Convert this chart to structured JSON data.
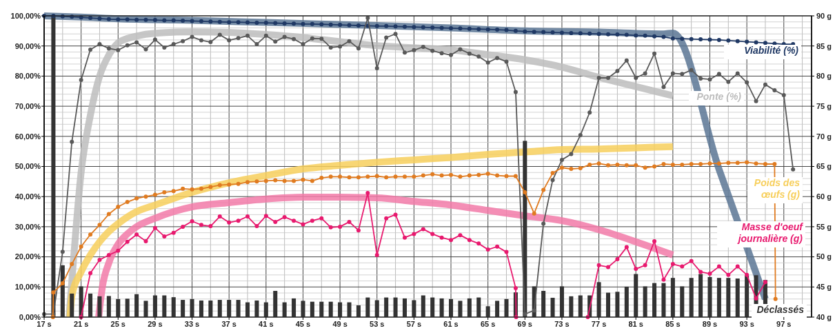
{
  "chart_data": {
    "type": "line",
    "xlim": [
      17,
      100
    ],
    "xticks": [
      {
        "value": 17,
        "label": "17 s"
      },
      {
        "value": 21,
        "label": "21 s"
      },
      {
        "value": 25,
        "label": "25 s"
      },
      {
        "value": 29,
        "label": "29 s"
      },
      {
        "value": 33,
        "label": "33 s"
      },
      {
        "value": 37,
        "label": "37 s"
      },
      {
        "value": 41,
        "label": "41 s"
      },
      {
        "value": 45,
        "label": "45 s"
      },
      {
        "value": 49,
        "label": "49 s"
      },
      {
        "value": 53,
        "label": "53 s"
      },
      {
        "value": 57,
        "label": "57 s"
      },
      {
        "value": 61,
        "label": "61 s"
      },
      {
        "value": 65,
        "label": "65 s"
      },
      {
        "value": 69,
        "label": "69 s"
      },
      {
        "value": 73,
        "label": "73 s"
      },
      {
        "value": 77,
        "label": "77 s"
      },
      {
        "value": 81,
        "label": "81 s"
      },
      {
        "value": 85,
        "label": "85 s"
      },
      {
        "value": 89,
        "label": "89 s"
      },
      {
        "value": 93,
        "label": "93 s"
      },
      {
        "value": 97,
        "label": "97 s"
      }
    ],
    "ylim": [
      0,
      100
    ],
    "yticks": [
      {
        "value": 0,
        "label": "0,00%"
      },
      {
        "value": 10,
        "label": "10,00%"
      },
      {
        "value": 20,
        "label": "20,00%"
      },
      {
        "value": 30,
        "label": "30,00%"
      },
      {
        "value": 40,
        "label": "40,00%"
      },
      {
        "value": 50,
        "label": "50,00%"
      },
      {
        "value": 60,
        "label": "60,00%"
      },
      {
        "value": 70,
        "label": "70,00%"
      },
      {
        "value": 80,
        "label": "80,00%"
      },
      {
        "value": 90,
        "label": "90,00%"
      },
      {
        "value": 100,
        "label": "100,00%"
      }
    ],
    "y2lim": [
      40,
      90
    ],
    "y2ticks": [
      {
        "value": 40,
        "label": "40 g"
      },
      {
        "value": 45,
        "label": "45 g"
      },
      {
        "value": 50,
        "label": "50 g"
      },
      {
        "value": 55,
        "label": "55 g"
      },
      {
        "value": 60,
        "label": "60 g"
      },
      {
        "value": 65,
        "label": "65 g"
      },
      {
        "value": 70,
        "label": "70 g"
      },
      {
        "value": 75,
        "label": "75 g"
      },
      {
        "value": 80,
        "label": "80 g"
      },
      {
        "value": 85,
        "label": "85 g"
      },
      {
        "value": 90,
        "label": "90 g"
      }
    ],
    "grid": true,
    "series": [
      {
        "marker": "none",
        "color": "#5b7594",
        "x": [
          17,
          21,
          25,
          33,
          41,
          53,
          61,
          69,
          77,
          84,
          85,
          90,
          95
        ],
        "values": [
          100,
          99.6,
          99.0,
          98.5,
          97.8,
          96.8,
          96.0,
          95.0,
          94.6,
          94.0,
          94.3,
          49,
          6
        ]
      },
      {
        "name": "Ponte (%)",
        "marker": "none",
        "color": "#bdbdbd",
        "x": [
          19.7,
          20,
          21,
          22,
          23,
          24,
          25,
          26,
          27,
          29,
          33,
          37,
          41,
          45,
          49,
          53,
          57,
          61,
          65,
          69,
          73,
          77,
          81,
          85
        ],
        "values": [
          0,
          12,
          48,
          67,
          80,
          87,
          91,
          92.5,
          93.3,
          94.2,
          94.7,
          94.5,
          93.8,
          92.8,
          91.4,
          90.1,
          89.4,
          88.7,
          87.1,
          85.4,
          83.0,
          79.6,
          76.5,
          73.5
        ]
      },
      {
        "name": "Poids des œufs (g)",
        "axis": "y2",
        "marker": "none",
        "color": "#f7cf5c",
        "x": [
          19.8,
          20,
          21,
          22,
          23,
          24,
          25,
          27,
          29,
          33,
          37,
          41,
          45,
          49,
          53,
          57,
          61,
          65,
          69,
          73,
          77,
          81,
          85
        ],
        "values": [
          40,
          43.5,
          47.5,
          50.3,
          52.5,
          54.2,
          55.5,
          57.5,
          58.6,
          60.7,
          62.3,
          63.5,
          64.6,
          65.2,
          65.7,
          66.1,
          66.5,
          67.0,
          67.4,
          67.8,
          67.9,
          68.1,
          68.3
        ]
      },
      {
        "axis": "y2",
        "marker": "none",
        "color": "#f27aa8",
        "x": [
          22.9,
          23.3,
          24,
          25,
          26,
          27,
          29,
          31,
          33,
          37,
          41,
          45,
          49,
          53,
          57,
          61,
          65,
          69,
          73,
          77,
          81,
          85
        ],
        "values": [
          40,
          45,
          49,
          52.1,
          53.8,
          55.0,
          56.4,
          57.5,
          58.3,
          59.0,
          59.6,
          59.9,
          59.9,
          59.8,
          59.2,
          58.6,
          57.7,
          56.8,
          56.0,
          54.5,
          52.5,
          50.3
        ]
      },
      {
        "name": "Déclassés",
        "type": "bar",
        "color": "#333333",
        "x": [
          18,
          19,
          20,
          21,
          22,
          23,
          24,
          25,
          26,
          27,
          28,
          29,
          30,
          31,
          32,
          33,
          34,
          35,
          36,
          37,
          38,
          39,
          40,
          41,
          42,
          43,
          44,
          45,
          46,
          47,
          48,
          49,
          50,
          51,
          52,
          53,
          54,
          55,
          56,
          57,
          58,
          59,
          60,
          61,
          62,
          63,
          64,
          65,
          66,
          67,
          68,
          69,
          70,
          71,
          72,
          73,
          74,
          75,
          76,
          77,
          78,
          79,
          80,
          81,
          82,
          83,
          84,
          85,
          86,
          87,
          88,
          89,
          90,
          91,
          92,
          93,
          94,
          95
        ],
        "values": [
          100,
          17.2,
          7.8,
          10.2,
          7.8,
          6.9,
          7.0,
          6.0,
          6.1,
          7.6,
          5.4,
          7.2,
          7.2,
          6.6,
          5.7,
          6.0,
          5.5,
          5.5,
          5.7,
          5.7,
          5.7,
          4.9,
          5.5,
          4.9,
          8.7,
          4.9,
          6.2,
          5.4,
          5.1,
          5.1,
          5.1,
          4.9,
          4.9,
          3.9,
          6.5,
          5.6,
          6.5,
          6.5,
          6.2,
          5.6,
          7.2,
          6.5,
          6.2,
          6.0,
          5.4,
          6.2,
          6.5,
          3.6,
          5.4,
          6.0,
          8.2,
          58.5,
          10.2,
          8.7,
          6.4,
          10.2,
          6.9,
          7.2,
          7.2,
          11.6,
          8.1,
          8.4,
          10.1,
          14.3,
          10.2,
          11.3,
          11.3,
          13.0,
          10.2,
          13.0,
          14.3,
          13.3,
          13.0,
          13.0,
          12.8,
          13.9,
          13.9,
          12.3
        ]
      },
      {
        "name": "Viabilité (%)",
        "marker": "circle",
        "color": "#1f3864",
        "x": [
          17,
          18,
          19,
          20,
          21,
          22,
          23,
          24,
          25,
          26,
          27,
          28,
          29,
          30,
          31,
          32,
          33,
          34,
          35,
          36,
          37,
          38,
          39,
          40,
          41,
          42,
          43,
          44,
          45,
          46,
          47,
          48,
          49,
          50,
          51,
          52,
          53,
          54,
          55,
          56,
          57,
          58,
          59,
          60,
          61,
          62,
          63,
          64,
          65,
          66,
          67,
          68,
          69,
          70,
          71,
          72,
          73,
          74,
          75,
          76,
          77,
          78,
          79,
          80,
          81,
          82,
          83,
          84,
          85,
          86,
          87,
          88,
          89,
          90,
          91,
          92,
          93,
          94,
          95,
          96,
          97,
          98
        ],
        "values": [
          100,
          100,
          99.8,
          99.7,
          99.5,
          99.3,
          99.1,
          98.9,
          98.8,
          98.8,
          98.7,
          98.7,
          98.6,
          98.5,
          98.5,
          98.4,
          98.3,
          98.2,
          98.1,
          98.0,
          97.9,
          97.9,
          97.8,
          97.7,
          97.7,
          97.6,
          97.5,
          97.4,
          97.3,
          97.3,
          97.2,
          97.1,
          97.0,
          96.9,
          96.8,
          96.7,
          96.6,
          96.6,
          96.5,
          96.4,
          96.3,
          96.2,
          96.1,
          96.0,
          95.9,
          95.8,
          95.7,
          95.6,
          95.5,
          95.4,
          95.3,
          95.0,
          94.8,
          94.7,
          94.6,
          94.5,
          94.4,
          94.3,
          94.2,
          94.1,
          94.0,
          93.9,
          93.8,
          93.7,
          93.5,
          93.4,
          93.2,
          93.0,
          92.5,
          92.4,
          92.3,
          92.2,
          92.1,
          92.0,
          91.8,
          91.6,
          91.4,
          91.2,
          91.0,
          90.8,
          90.6,
          90.6
        ]
      },
      {
        "marker": "circle",
        "color": "#595959",
        "x": [
          17,
          18,
          19,
          20,
          21,
          22,
          23,
          24,
          25,
          26,
          27,
          28,
          29,
          30,
          31,
          32,
          33,
          34,
          35,
          36,
          37,
          38,
          39,
          40,
          41,
          42,
          43,
          44,
          45,
          46,
          47,
          48,
          49,
          50,
          51,
          52,
          53,
          54,
          55,
          56,
          57,
          58,
          59,
          60,
          61,
          62,
          63,
          64,
          65,
          66,
          67,
          68,
          69,
          70,
          71,
          72,
          73,
          74,
          75,
          76,
          77,
          78,
          79,
          80,
          81,
          82,
          83,
          84,
          85,
          86,
          87,
          88,
          89,
          90,
          91,
          92,
          93,
          94,
          95,
          96,
          97,
          98
        ],
        "values": [
          1,
          1,
          21.7,
          58.2,
          78.7,
          88.8,
          90.6,
          89.2,
          88.6,
          90.2,
          91.2,
          88.9,
          92.1,
          89.5,
          90.6,
          91.6,
          93.0,
          91.9,
          91.3,
          93.7,
          91.9,
          92.6,
          93.4,
          90.6,
          93.4,
          91.5,
          93.0,
          92.3,
          90.6,
          92.5,
          92.4,
          89.5,
          89.8,
          91.6,
          89.2,
          99.3,
          82.6,
          92.8,
          94.0,
          87.8,
          88.6,
          89.7,
          88.4,
          87.6,
          87.0,
          88.9,
          87.5,
          86.5,
          84.5,
          86.0,
          84.8,
          74.7,
          1,
          2.2,
          31,
          45.5,
          52.2,
          54.1,
          60.4,
          67.9,
          79.4,
          79.4,
          81.7,
          85.2,
          79.4,
          80.9,
          87.5,
          76.4,
          80.9,
          80.7,
          82.0,
          79.2,
          78.9,
          80.7,
          78.1,
          80.9,
          77.9,
          71.7,
          77.2,
          75.3,
          73.7,
          49
        ]
      },
      {
        "axis": "y2",
        "marker": "circle",
        "color": "#e07b20",
        "x": [
          17.95,
          18,
          19,
          20,
          21,
          22,
          23,
          24,
          25,
          26,
          27,
          28,
          29,
          30,
          31,
          32,
          33,
          34,
          35,
          36,
          37,
          38,
          39,
          40,
          41,
          42,
          43,
          44,
          45,
          46,
          47,
          48,
          49,
          50,
          51,
          52,
          53,
          54,
          55,
          56,
          57,
          58,
          59,
          60,
          61,
          62,
          63,
          64,
          65,
          66,
          67,
          68,
          69,
          70,
          71,
          72,
          73,
          74,
          75,
          76,
          77,
          78,
          79,
          80,
          81,
          82,
          83,
          84,
          85,
          86,
          87,
          88,
          89,
          90,
          91,
          92,
          93,
          94,
          95,
          96,
          96.1
        ],
        "values": [
          40,
          44.1,
          45.6,
          48.8,
          51.7,
          53.7,
          55.3,
          57.1,
          58.3,
          59.1,
          59.7,
          60.0,
          60.3,
          60.7,
          60.9,
          61.3,
          61.2,
          61.3,
          61.6,
          61.9,
          62.0,
          62.1,
          62.4,
          62.5,
          62.6,
          62.7,
          62.6,
          62.6,
          62.8,
          62.6,
          63.1,
          63.3,
          63.3,
          63.2,
          63.2,
          63.3,
          63.4,
          63.2,
          63.3,
          63.3,
          63.3,
          63.5,
          63.7,
          63.5,
          63.6,
          63.3,
          63.5,
          63.6,
          63.8,
          63.5,
          63.4,
          63.4,
          60.7,
          57.2,
          61.1,
          63.9,
          64.8,
          64.6,
          64.7,
          65.3,
          65.5,
          65.2,
          65.3,
          65.2,
          65.2,
          64.8,
          65.0,
          65.4,
          65.3,
          65.3,
          65.4,
          65.4,
          65.5,
          65.5,
          65.6,
          65.6,
          65.7,
          65.5,
          65.4,
          65.4,
          43
        ]
      },
      {
        "name": "Masse d'oeuf journalière (g)",
        "axis": "y2",
        "marker": "circle",
        "color": "#e8196e",
        "x": [
          21,
          22,
          23,
          24,
          25,
          26,
          27,
          28,
          29,
          30,
          31,
          32,
          33,
          34,
          35,
          36,
          37,
          38,
          39,
          40,
          41,
          42,
          43,
          44,
          45,
          46,
          47,
          48,
          49,
          50,
          51,
          52,
          53,
          54,
          55,
          56,
          57,
          58,
          59,
          60,
          61,
          62,
          63,
          64,
          65,
          66,
          67,
          68,
          68.05,
          72,
          75.8,
          77,
          78,
          79,
          80,
          81,
          82,
          83,
          84,
          85,
          86,
          87,
          88,
          89,
          90,
          91,
          92,
          93,
          94,
          95
        ],
        "values": [
          40,
          47.3,
          49.5,
          50.3,
          51.0,
          52.5,
          53.7,
          52.6,
          54.8,
          53.4,
          54.0,
          55.0,
          55.9,
          55.3,
          55.1,
          56.7,
          55.7,
          56.0,
          56.7,
          55.1,
          56.8,
          55.8,
          56.6,
          56.0,
          55.4,
          56.0,
          56.4,
          54.9,
          55.0,
          55.8,
          54.4,
          60.6,
          50.3,
          56.4,
          57.0,
          53.2,
          53.8,
          54.6,
          53.8,
          53.2,
          52.8,
          53.6,
          52.8,
          52.2,
          51.2,
          51.7,
          50.8,
          44.8,
          40,
          null,
          40,
          48.6,
          48.3,
          49.6,
          51.6,
          48.0,
          48.6,
          52.6,
          46.2,
          48.8,
          48.4,
          49.3,
          47.5,
          47.2,
          48.4,
          47.0,
          48.4,
          47.0,
          43.1,
          45.8
        ]
      }
    ]
  }
}
